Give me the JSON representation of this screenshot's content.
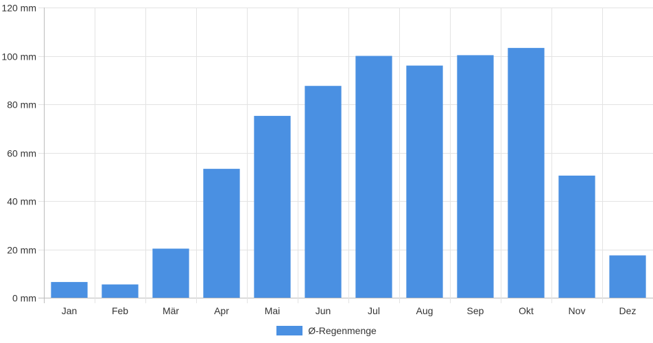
{
  "chart_data": {
    "type": "bar",
    "categories": [
      "Jan",
      "Feb",
      "Mär",
      "Apr",
      "Mai",
      "Jun",
      "Jul",
      "Aug",
      "Sep",
      "Okt",
      "Nov",
      "Dez"
    ],
    "series": [
      {
        "name": "Ø-Regenmenge",
        "values": [
          6.5,
          5.5,
          20.3,
          53.3,
          75.2,
          87.6,
          100.0,
          96.0,
          100.3,
          103.3,
          50.5,
          17.5
        ],
        "color": "#4a90e2"
      }
    ],
    "y_ticks": [
      "0 mm",
      "20 mm",
      "40 mm",
      "60 mm",
      "80 mm",
      "100 mm",
      "120 mm"
    ],
    "ylim": [
      0,
      120
    ],
    "grid": true,
    "legend_position": "bottom-center",
    "title": "",
    "xlabel": "",
    "ylabel": ""
  }
}
